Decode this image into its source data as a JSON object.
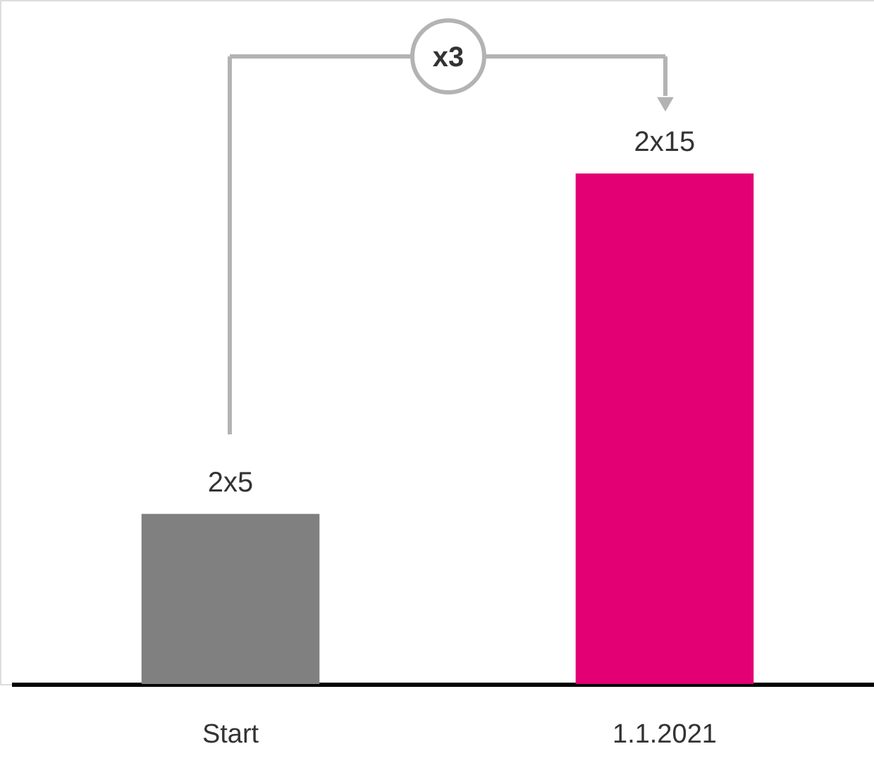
{
  "chart_data": {
    "type": "bar",
    "categories": [
      "Start",
      "1.1.2021"
    ],
    "values": [
      5,
      15
    ],
    "colors": [
      "#808080",
      "#e20074"
    ],
    "value_labels": [
      "2x5",
      "2x15"
    ],
    "annotations": [
      "x3"
    ]
  }
}
